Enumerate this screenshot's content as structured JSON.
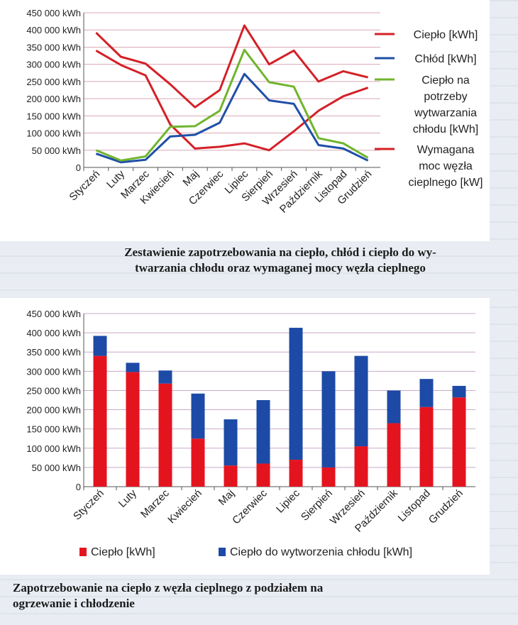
{
  "chart_data": [
    {
      "type": "line",
      "categories": [
        "Styczeń",
        "Luty",
        "Marzec",
        "Kwiecień",
        "Maj",
        "Czerwiec",
        "Lipiec",
        "Sierpień",
        "Wrzesień",
        "Październik",
        "Listopad",
        "Grudzień"
      ],
      "yticks": [
        "450 000 kWh",
        "400 000 kWh",
        "350 000 kWh",
        "300 000 kWh",
        "250 000 kWh",
        "200 000 kWh",
        "150 000 kWh",
        "100 000 kWh",
        "50 000 kWh",
        "0"
      ],
      "ylim": [
        0,
        450000
      ],
      "series": [
        {
          "name": "Ciepło [kWh]",
          "color": "#d42027",
          "values": [
            340000,
            298000,
            268000,
            125000,
            55000,
            60000,
            70000,
            50000,
            105000,
            165000,
            207000,
            232000
          ]
        },
        {
          "name": "Chłód [kWh]",
          "color": "#1f4fa8",
          "values": [
            40000,
            15000,
            22000,
            90000,
            95000,
            130000,
            272000,
            195000,
            185000,
            65000,
            55000,
            20000
          ]
        },
        {
          "name": "Ciepło na potrzeby wytwarzania chłodu [kWh]",
          "color": "#6fb52c",
          "values": [
            50000,
            20000,
            32000,
            118000,
            120000,
            165000,
            342000,
            248000,
            235000,
            85000,
            70000,
            28000
          ]
        },
        {
          "name": "Wymagana moc węzła cieplnego [kW]",
          "color": "#d42027",
          "values": [
            392000,
            322000,
            302000,
            242000,
            175000,
            225000,
            413000,
            300000,
            340000,
            250000,
            280000,
            262000
          ]
        }
      ],
      "legend": [
        {
          "lines": [
            "Ciepło [kWh]"
          ],
          "color": "#d42027"
        },
        {
          "lines": [
            "Chłód [kWh]"
          ],
          "color": "#1f4fa8"
        },
        {
          "lines": [
            "Ciepło na",
            "potrzeby",
            "wytwarzania",
            "chłodu [kWh]"
          ],
          "color": "#6fb52c"
        },
        {
          "lines": [
            "Wymagana",
            "moc węzła",
            "cieplnego [kW]"
          ],
          "color": "#d42027"
        }
      ],
      "legend_position": "right",
      "grid": true
    },
    {
      "type": "bar",
      "stacked": true,
      "categories": [
        "Styczeń",
        "Luty",
        "Marzec",
        "Kwiecień",
        "Maj",
        "Czerwiec",
        "Lipiec",
        "Sierpień",
        "Wrzesień",
        "Październik",
        "Listopad",
        "Grudzień"
      ],
      "yticks": [
        "450 000 kWh",
        "400 000 kWh",
        "350 000 kWh",
        "300 000 kWh",
        "250 000 kWh",
        "200 000 kWh",
        "150 000 kWh",
        "100 000 kWh",
        "50 000 kWh",
        "0"
      ],
      "ylim": [
        0,
        450000
      ],
      "series": [
        {
          "name": "Ciepło [kWh]",
          "color": "#e4141f",
          "values": [
            340000,
            298000,
            268000,
            125000,
            55000,
            60000,
            70000,
            50000,
            105000,
            165000,
            207000,
            232000
          ]
        },
        {
          "name": "Ciepło do wytworzenia chłodu [kWh]",
          "color": "#1c4aa6",
          "values": [
            52000,
            24000,
            34000,
            117000,
            120000,
            165000,
            343000,
            250000,
            235000,
            85000,
            73000,
            30000
          ]
        }
      ],
      "legend_position": "bottom",
      "grid": true
    }
  ],
  "captions": {
    "chart1": [
      "Zestawienie zapotrzebowania na ciepło, chłód i ciepło do wy-",
      "twarzania chłodu oraz wymaganej mocy węzła cieplnego"
    ],
    "chart2": [
      "Zapotrzebowanie na ciepło z węzła cieplnego z podziałem na",
      "ogrzewanie i chłodzenie"
    ]
  }
}
